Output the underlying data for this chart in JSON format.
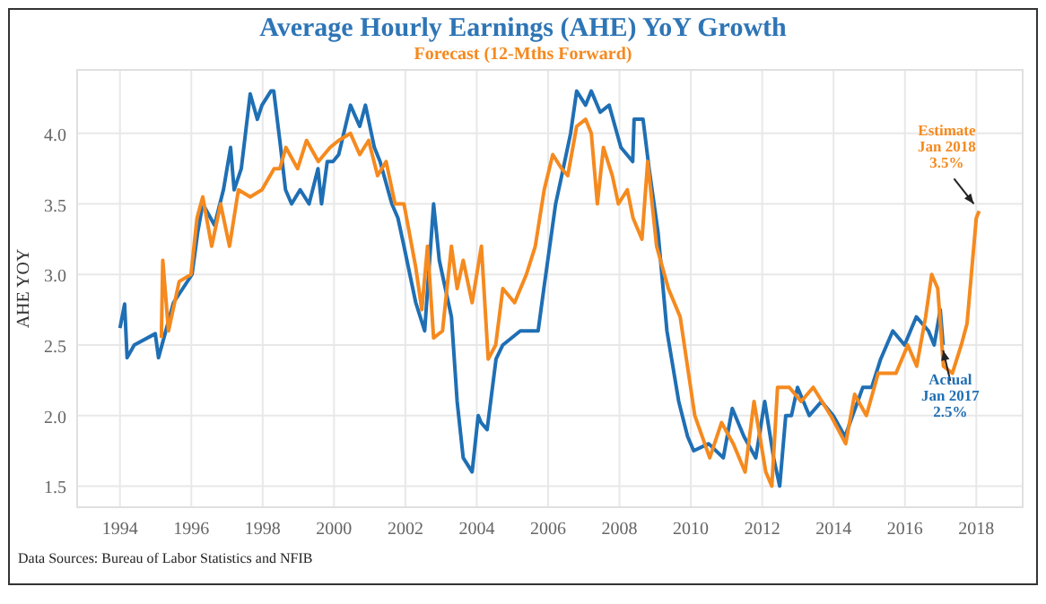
{
  "chart_data": {
    "type": "line",
    "title": "Average Hourly Earnings (AHE) YoY Growth",
    "subtitle": "Forecast (12-Mths Forward)",
    "ylabel": "AHE YOY",
    "xlim": [
      1992.8,
      2019.3
    ],
    "xticks": [
      1994,
      1996,
      1998,
      2000,
      2002,
      2004,
      2006,
      2008,
      2010,
      2012,
      2014,
      2016,
      2018
    ],
    "ylim": [
      1.35,
      4.45
    ],
    "yticks": [
      {
        "value": 1.5,
        "label": "1.5"
      },
      {
        "value": 2.0,
        "label": "2.0"
      },
      {
        "value": 2.5,
        "label": "2.5"
      },
      {
        "value": 3.0,
        "label": "3.0"
      },
      {
        "value": 3.5,
        "label": "3.5"
      },
      {
        "value": 4.0,
        "label": "4.0"
      }
    ],
    "grid": true,
    "line_style": "solid",
    "series": [
      {
        "color": "#1f6fb4",
        "x": [
          1994.0,
          1994.13,
          1994.2,
          1994.4,
          1994.99,
          1995.08,
          1995.5,
          1996.02,
          1996.18,
          1996.32,
          1996.65,
          1996.9,
          1997.1,
          1997.2,
          1997.4,
          1997.65,
          1997.85,
          1997.98,
          1998.23,
          1998.31,
          1998.48,
          1998.64,
          1998.81,
          1999.05,
          1999.3,
          1999.55,
          1999.65,
          1999.81,
          1999.97,
          2000.13,
          2000.46,
          2000.72,
          2000.88,
          2001.13,
          2001.29,
          2001.62,
          2001.79,
          2001.96,
          2002.29,
          2002.54,
          2002.79,
          2002.95,
          2003.12,
          2003.29,
          2003.45,
          2003.62,
          2003.87,
          2004.04,
          2004.12,
          2004.29,
          2004.54,
          2004.73,
          2005.22,
          2005.72,
          2005.88,
          2006.21,
          2006.38,
          2006.63,
          2006.8,
          2007.05,
          2007.21,
          2007.46,
          2007.71,
          2008.04,
          2008.37,
          2008.41,
          2008.66,
          2008.83,
          2009.08,
          2009.33,
          2009.66,
          2009.91,
          2010.08,
          2010.5,
          2010.91,
          2011.16,
          2011.49,
          2011.82,
          2012.07,
          2012.32,
          2012.49,
          2012.66,
          2012.82,
          2012.99,
          2013.32,
          2013.66,
          2013.99,
          2014.32,
          2014.82,
          2015.07,
          2015.32,
          2015.66,
          2015.99,
          2016.32,
          2016.66,
          2016.82,
          2016.99,
          2017.07
        ],
        "values": [
          2.62,
          2.79,
          2.41,
          2.5,
          2.58,
          2.41,
          2.8,
          3.0,
          3.3,
          3.5,
          3.35,
          3.6,
          3.9,
          3.6,
          3.75,
          4.28,
          4.1,
          4.2,
          4.3,
          4.3,
          3.95,
          3.6,
          3.5,
          3.6,
          3.5,
          3.75,
          3.5,
          3.8,
          3.8,
          3.85,
          4.2,
          4.05,
          4.2,
          3.9,
          3.8,
          3.5,
          3.4,
          3.2,
          2.8,
          2.6,
          3.5,
          3.1,
          2.9,
          2.7,
          2.1,
          1.7,
          1.6,
          2.0,
          1.95,
          1.9,
          2.4,
          2.5,
          2.6,
          2.6,
          2.9,
          3.5,
          3.7,
          4.0,
          4.3,
          4.2,
          4.3,
          4.15,
          4.2,
          3.9,
          3.8,
          4.1,
          4.1,
          3.75,
          3.3,
          2.6,
          2.1,
          1.85,
          1.75,
          1.8,
          1.7,
          2.05,
          1.85,
          1.7,
          2.1,
          1.7,
          1.5,
          2.0,
          2.0,
          2.2,
          2.0,
          2.1,
          2.0,
          1.85,
          2.2,
          2.2,
          2.4,
          2.6,
          2.5,
          2.7,
          2.6,
          2.5,
          2.75,
          2.5
        ]
      },
      {
        "color": "#f58a1f",
        "x": [
          1995.16,
          1995.2,
          1995.36,
          1995.66,
          1995.99,
          1996.16,
          1996.32,
          1996.57,
          1996.82,
          1997.07,
          1997.32,
          1997.65,
          1997.98,
          1998.32,
          1998.48,
          1998.65,
          1998.98,
          1999.23,
          1999.56,
          1999.89,
          2000.13,
          2000.46,
          2000.72,
          2000.97,
          2001.22,
          2001.46,
          2001.71,
          2001.96,
          2002.29,
          2002.46,
          2002.62,
          2002.79,
          2003.04,
          2003.29,
          2003.45,
          2003.62,
          2003.87,
          2004.13,
          2004.32,
          2004.53,
          2004.73,
          2005.06,
          2005.39,
          2005.64,
          2005.89,
          2006.13,
          2006.38,
          2006.55,
          2006.8,
          2007.05,
          2007.21,
          2007.38,
          2007.55,
          2007.8,
          2007.97,
          2008.22,
          2008.38,
          2008.63,
          2008.79,
          2009.04,
          2009.37,
          2009.7,
          2010.11,
          2010.53,
          2010.86,
          2011.19,
          2011.52,
          2011.77,
          2012.1,
          2012.27,
          2012.43,
          2012.76,
          2013.09,
          2013.43,
          2013.92,
          2014.34,
          2014.59,
          2014.92,
          2015.25,
          2015.75,
          2016.08,
          2016.33,
          2016.58,
          2016.75,
          2016.92,
          2017.08,
          2017.33,
          2017.58,
          2017.74,
          2018.0,
          2018.08
        ],
        "values": [
          2.55,
          3.1,
          2.6,
          2.95,
          3.0,
          3.4,
          3.55,
          3.2,
          3.5,
          3.2,
          3.6,
          3.55,
          3.6,
          3.75,
          3.75,
          3.9,
          3.75,
          3.95,
          3.8,
          3.9,
          3.95,
          4.0,
          3.85,
          3.95,
          3.7,
          3.8,
          3.5,
          3.5,
          3.05,
          2.75,
          3.2,
          2.55,
          2.6,
          3.2,
          2.9,
          3.1,
          2.8,
          3.2,
          2.4,
          2.5,
          2.9,
          2.8,
          3.0,
          3.2,
          3.6,
          3.85,
          3.75,
          3.7,
          4.05,
          4.1,
          4.0,
          3.5,
          3.9,
          3.7,
          3.5,
          3.6,
          3.4,
          3.25,
          3.8,
          3.2,
          2.9,
          2.7,
          2.0,
          1.7,
          1.95,
          1.8,
          1.6,
          2.1,
          1.6,
          1.5,
          2.2,
          2.2,
          2.1,
          2.2,
          2.0,
          1.8,
          2.15,
          2.0,
          2.3,
          2.3,
          2.5,
          2.35,
          2.7,
          3.0,
          2.9,
          2.35,
          2.3,
          2.5,
          2.65,
          3.4,
          3.45
        ]
      }
    ],
    "annotations": [
      {
        "text": "Estimate\nJan 2018\n3.5%",
        "x": 2018.08,
        "y": 3.45
      },
      {
        "text": "Actual\nJan 2017\n2.5%",
        "x": 2017.07,
        "y": 2.5
      },
      "Data Sources: Bureau of Labor Statistics and NFIB"
    ]
  }
}
